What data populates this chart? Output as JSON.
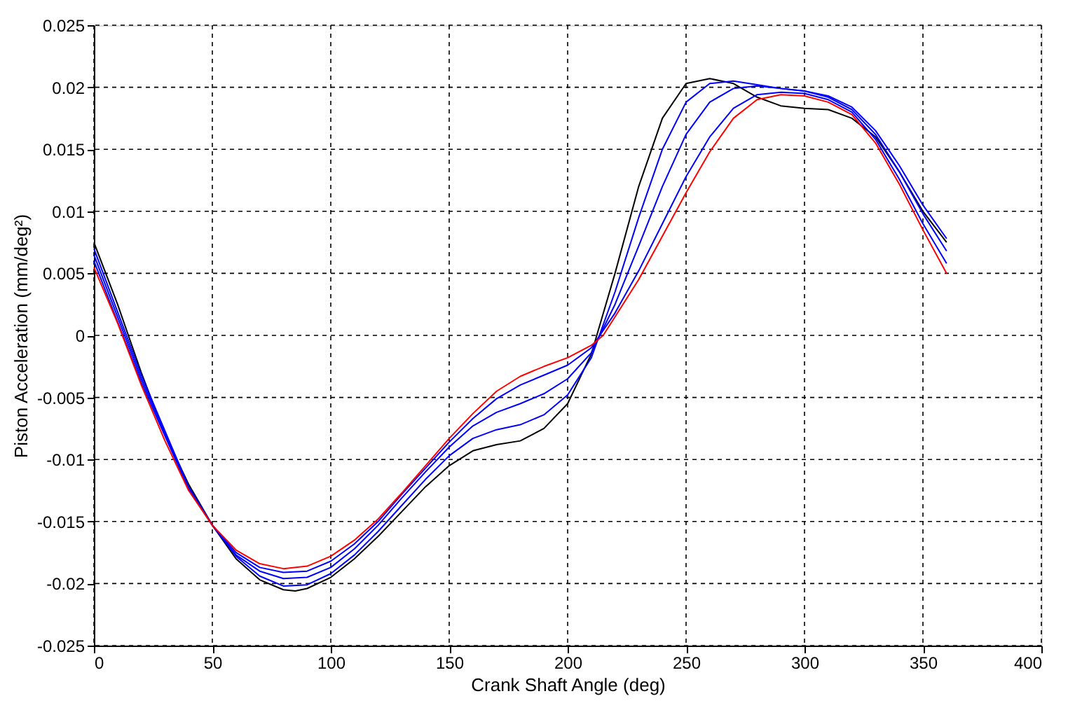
{
  "chart_data": {
    "type": "line",
    "xlabel": "Crank Shaft Angle (deg)",
    "ylabel": "Piston Acceleration (mm/deg²)",
    "xlim": [
      0,
      400
    ],
    "xticks": [
      0,
      50,
      100,
      150,
      200,
      250,
      300,
      350,
      400
    ],
    "ylim": [
      -0.025,
      0.025
    ],
    "yticks": [
      -0.025,
      -0.02,
      -0.015,
      -0.01,
      -0.005,
      0,
      0.005,
      0.01,
      0.015,
      0.02,
      0.025
    ],
    "grid": true,
    "marker": "none",
    "line_style": "solid",
    "series": [
      {
        "color": "#000000",
        "x": [
          0,
          10,
          20,
          30,
          40,
          50,
          60,
          70,
          80,
          85,
          90,
          100,
          110,
          120,
          130,
          140,
          150,
          160,
          170,
          180,
          190,
          200,
          210,
          220,
          230,
          240,
          250,
          260,
          270,
          280,
          290,
          300,
          310,
          320,
          330,
          340,
          350,
          360
        ],
        "values": [
          0.0075,
          0.0025,
          -0.003,
          -0.008,
          -0.012,
          -0.0153,
          -0.018,
          -0.0197,
          -0.0205,
          -0.0206,
          -0.0204,
          -0.0195,
          -0.018,
          -0.0162,
          -0.0142,
          -0.0122,
          -0.0105,
          -0.0093,
          -0.0088,
          -0.0085,
          -0.0075,
          -0.0055,
          -0.0015,
          0.005,
          0.012,
          0.0175,
          0.0203,
          0.0207,
          0.0203,
          0.0192,
          0.0185,
          0.0183,
          0.0182,
          0.0175,
          0.016,
          0.0132,
          0.01,
          0.0075
        ]
      },
      {
        "color": "#0000ff",
        "x": [
          0,
          20,
          40,
          50,
          60,
          70,
          80,
          90,
          100,
          110,
          120,
          130,
          140,
          150,
          160,
          170,
          180,
          190,
          200,
          210,
          220,
          230,
          240,
          250,
          260,
          270,
          280,
          290,
          300,
          310,
          320,
          330,
          340,
          350,
          360
        ],
        "values": [
          0.007,
          -0.0032,
          -0.0122,
          -0.0153,
          -0.0178,
          -0.0194,
          -0.0202,
          -0.0201,
          -0.0192,
          -0.0177,
          -0.0158,
          -0.0137,
          -0.0116,
          -0.0097,
          -0.0083,
          -0.0076,
          -0.0072,
          -0.0064,
          -0.0048,
          -0.0018,
          0.0035,
          0.0095,
          0.015,
          0.0188,
          0.0203,
          0.0205,
          0.0202,
          0.0199,
          0.0197,
          0.0193,
          0.0184,
          0.0165,
          0.0137,
          0.0105,
          0.0078
        ]
      },
      {
        "color": "#0000ff",
        "x": [
          0,
          20,
          40,
          50,
          60,
          70,
          80,
          90,
          100,
          110,
          120,
          130,
          140,
          150,
          160,
          170,
          180,
          190,
          200,
          210,
          220,
          230,
          240,
          250,
          260,
          270,
          280,
          290,
          300,
          310,
          320,
          330,
          340,
          350,
          360
        ],
        "values": [
          0.0065,
          -0.0035,
          -0.0123,
          -0.0153,
          -0.0177,
          -0.019,
          -0.0196,
          -0.0195,
          -0.0187,
          -0.0172,
          -0.0153,
          -0.0131,
          -0.011,
          -0.009,
          -0.0073,
          -0.0062,
          -0.0055,
          -0.0047,
          -0.0035,
          -0.0014,
          0.0025,
          0.0072,
          0.012,
          0.0162,
          0.0188,
          0.0199,
          0.0201,
          0.0199,
          0.0197,
          0.0192,
          0.0182,
          0.0162,
          0.0132,
          0.0098,
          0.0068
        ]
      },
      {
        "color": "#0000ff",
        "x": [
          0,
          20,
          40,
          50,
          60,
          70,
          80,
          90,
          100,
          110,
          120,
          130,
          140,
          150,
          160,
          170,
          180,
          190,
          200,
          210,
          220,
          230,
          240,
          250,
          260,
          270,
          280,
          290,
          300,
          310,
          320,
          330,
          340,
          350,
          360
        ],
        "values": [
          0.006,
          -0.0038,
          -0.0124,
          -0.0153,
          -0.0175,
          -0.0187,
          -0.0191,
          -0.019,
          -0.0182,
          -0.0168,
          -0.015,
          -0.0128,
          -0.0107,
          -0.0086,
          -0.0067,
          -0.0051,
          -0.004,
          -0.0032,
          -0.0024,
          -0.001,
          0.0018,
          0.0052,
          0.009,
          0.0128,
          0.016,
          0.0183,
          0.0194,
          0.0196,
          0.0195,
          0.019,
          0.018,
          0.0158,
          0.0126,
          0.009,
          0.0058
        ]
      },
      {
        "color": "#ff0000",
        "x": [
          0,
          10,
          20,
          30,
          40,
          50,
          60,
          70,
          80,
          90,
          100,
          110,
          120,
          130,
          140,
          150,
          160,
          170,
          180,
          190,
          200,
          210,
          215,
          220,
          230,
          240,
          250,
          260,
          270,
          280,
          290,
          300,
          310,
          320,
          330,
          340,
          350,
          360
        ],
        "values": [
          0.0055,
          0.001,
          -0.004,
          -0.0085,
          -0.0125,
          -0.0153,
          -0.0173,
          -0.0184,
          -0.0188,
          -0.0186,
          -0.0178,
          -0.0165,
          -0.0148,
          -0.0127,
          -0.0105,
          -0.0083,
          -0.0063,
          -0.0045,
          -0.0033,
          -0.0025,
          -0.0018,
          -0.0008,
          0,
          0.0015,
          0.0045,
          0.008,
          0.0115,
          0.0148,
          0.0175,
          0.019,
          0.0194,
          0.0193,
          0.0188,
          0.0178,
          0.0155,
          0.0122,
          0.0085,
          0.005
        ]
      }
    ]
  }
}
